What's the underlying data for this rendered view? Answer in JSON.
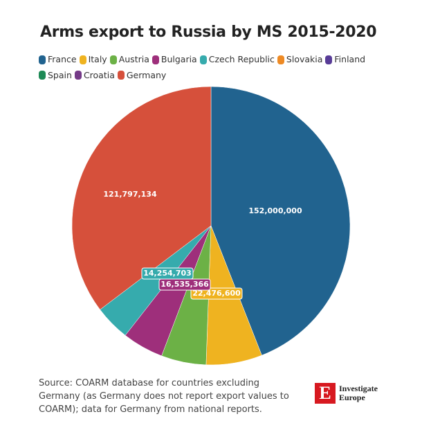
{
  "chart_data": {
    "type": "pie",
    "title": "Arms export to Russia by MS 2015-2020",
    "start_angle": "12 o'clock, clockwise",
    "legend_position": "top",
    "slices": [
      {
        "name": "France",
        "value": 152000000,
        "label": "152,000,000",
        "color": "#21638f"
      },
      {
        "name": "Italy",
        "value": 22476600,
        "label": "22,476,600",
        "color": "#efb320"
      },
      {
        "name": "Austria",
        "value": 18000000,
        "label": "",
        "color": "#6cb146"
      },
      {
        "name": "Bulgaria",
        "value": 16535366,
        "label": "16,535,366",
        "color": "#9e2f7b"
      },
      {
        "name": "Czech Republic",
        "value": 14254703,
        "label": "14,254,703",
        "color": "#36abad"
      },
      {
        "name": "Slovakia",
        "value": 0,
        "label": "",
        "color": "#ee8a24"
      },
      {
        "name": "Finland",
        "value": 0,
        "label": "",
        "color": "#583c97"
      },
      {
        "name": "Spain",
        "value": 0,
        "label": "",
        "color": "#1e8a56"
      },
      {
        "name": "Croatia",
        "value": 0,
        "label": "",
        "color": "#743a87"
      },
      {
        "name": "Germany",
        "value": 121797134,
        "label": "121,797,134",
        "color": "#d6503b"
      }
    ]
  },
  "source": "Source: COARM database for countries excluding Germany (as Germany does not report export values to COARM); data for Germany from national reports.",
  "logo": {
    "mark": "E",
    "line1": "Investigate",
    "line2": "Europe"
  }
}
